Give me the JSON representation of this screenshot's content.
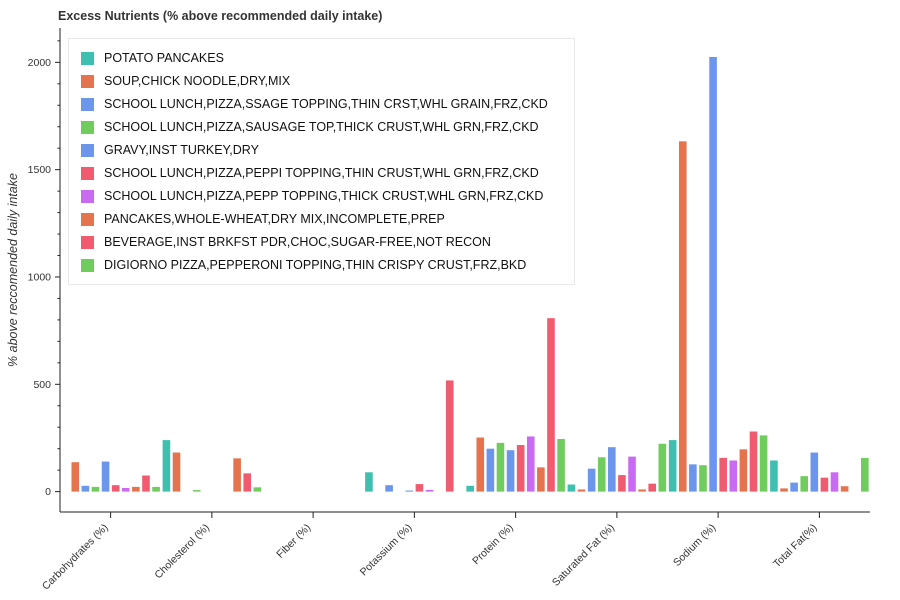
{
  "chart_data": {
    "type": "bar",
    "title": "Excess Nutrients (% above recommended daily intake)",
    "xlabel": "",
    "ylabel": "% above reccomended daily intake",
    "ylim": [
      -95,
      2160
    ],
    "yticks": [
      0,
      500,
      1000,
      1500,
      2000
    ],
    "categories": [
      "Carbohydrates (%)",
      "Cholesterol (%)",
      "Fiber (%)",
      "Potassium (%)",
      "Protein (%)",
      "Saturated Fat (%)",
      "Sodium (%)",
      "Total Fat(%)"
    ],
    "legend_position": "top-left",
    "grid": false,
    "series": [
      {
        "name": "POTATO PANCAKES",
        "color": "#3ebfb0",
        "values": [
          0,
          240,
          0,
          90,
          27,
          33,
          240,
          145
        ]
      },
      {
        "name": "SOUP,CHICK NOODLE,DRY,MIX",
        "color": "#e4734e",
        "values": [
          137,
          182,
          0,
          0,
          252,
          10,
          1632,
          15
        ]
      },
      {
        "name": "SCHOOL LUNCH,PIZZA,SSAGE TOPPING,THIN CRST,WHL GRAIN,FRZ,CKD",
        "color": "#6b96ec",
        "values": [
          27,
          0,
          0,
          30,
          200,
          107,
          127,
          42
        ]
      },
      {
        "name": "SCHOOL LUNCH,PIZZA,SAUSAGE TOP,THICK CRUST,WHL GRN,FRZ,CKD",
        "color": "#6fcc5d",
        "values": [
          22,
          7,
          0,
          0,
          227,
          160,
          123,
          72
        ]
      },
      {
        "name": "GRAVY,INST TURKEY,DRY",
        "color": "#6b96ec",
        "values": [
          140,
          0,
          0,
          5,
          193,
          207,
          2025,
          182
        ]
      },
      {
        "name": "SCHOOL LUNCH,PIZZA,PEPPI TOPPING,THIN CRUST,WHL GRN,FRZ,CKD",
        "color": "#f05b6f",
        "values": [
          30,
          0,
          0,
          35,
          217,
          77,
          157,
          65
        ]
      },
      {
        "name": "SCHOOL LUNCH,PIZZA,PEPP TOPPING,THICK CRUST,WHL GRN,FRZ,CKD",
        "color": "#c86bf0",
        "values": [
          17,
          0,
          0,
          8,
          257,
          163,
          145,
          90
        ]
      },
      {
        "name": "PANCAKES,WHOLE-WHEAT,DRY MIX,INCOMPLETE,PREP",
        "color": "#e4734e",
        "values": [
          22,
          155,
          0,
          0,
          113,
          10,
          197,
          25
        ]
      },
      {
        "name": "BEVERAGE,INST BRKFST PDR,CHOC,SUGAR-FREE,NOT RECON",
        "color": "#f05b6f",
        "values": [
          75,
          85,
          0,
          518,
          808,
          37,
          280,
          0
        ]
      },
      {
        "name": "DIGIORNO PIZZA,PEPPERONI TOPPING,THIN CRISPY CRUST,FRZ,BKD",
        "color": "#6fcc5d",
        "values": [
          22,
          20,
          0,
          0,
          245,
          223,
          262,
          157
        ]
      }
    ]
  }
}
